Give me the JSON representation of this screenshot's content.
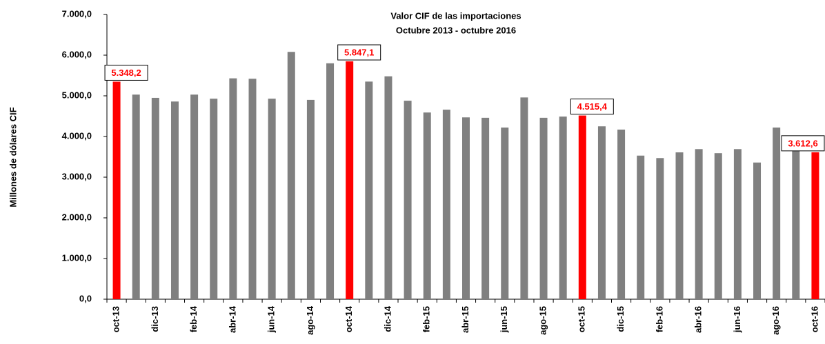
{
  "chart_data": {
    "type": "bar",
    "title": [
      "Valor CIF de las importaciones",
      "Octubre 2013 - octubre 2016"
    ],
    "y_label": "Millones de dólares CIF",
    "categories": [
      "oct-13",
      null,
      "dic-13",
      null,
      "feb-14",
      null,
      "abr-14",
      null,
      "jun-14",
      null,
      "ago-14",
      null,
      "oct-14",
      null,
      "dic-14",
      null,
      "feb-15",
      null,
      "abr-15",
      null,
      "jun-15",
      null,
      "ago-15",
      null,
      "oct-15",
      null,
      "dic-15",
      null,
      "feb-16",
      null,
      "abr-16",
      null,
      "jun-16",
      null,
      "ago-16",
      null,
      "oct-16"
    ],
    "values": [
      5348.2,
      5030,
      4950,
      4860,
      5030,
      4930,
      5430,
      5420,
      4930,
      6080,
      4900,
      5800,
      5847.1,
      5350,
      5480,
      4880,
      4590,
      4660,
      4470,
      4460,
      4220,
      4960,
      4460,
      4490,
      4515.4,
      4250,
      4170,
      3530,
      3470,
      3610,
      3690,
      3590,
      3690,
      3360,
      4220,
      3930,
      3612.6
    ],
    "value_labels": [
      "5.348,2",
      null,
      null,
      null,
      null,
      null,
      null,
      null,
      null,
      null,
      null,
      null,
      "5.847,1",
      null,
      null,
      null,
      null,
      null,
      null,
      null,
      null,
      null,
      null,
      null,
      "4.515,4",
      null,
      null,
      null,
      null,
      null,
      null,
      null,
      null,
      null,
      null,
      null,
      "3.612,6"
    ],
    "colors": [
      "#ff0000",
      "#808080",
      "#808080",
      "#808080",
      "#808080",
      "#808080",
      "#808080",
      "#808080",
      "#808080",
      "#808080",
      "#808080",
      "#808080",
      "#ff0000",
      "#808080",
      "#808080",
      "#808080",
      "#808080",
      "#808080",
      "#808080",
      "#808080",
      "#808080",
      "#808080",
      "#808080",
      "#808080",
      "#ff0000",
      "#808080",
      "#808080",
      "#808080",
      "#808080",
      "#808080",
      "#808080",
      "#808080",
      "#808080",
      "#808080",
      "#808080",
      "#808080",
      "#ff0000"
    ],
    "value_label_color": "#ff0000",
    "ylim": [
      0,
      7000
    ],
    "yticks": [
      {
        "value": 0,
        "label": "0,0"
      },
      {
        "value": 1000,
        "label": "1.000,0"
      },
      {
        "value": 2000,
        "label": "2.000,0"
      },
      {
        "value": 3000,
        "label": "3.000,0"
      },
      {
        "value": 4000,
        "label": "4.000,0"
      },
      {
        "value": 5000,
        "label": "5.000,0"
      },
      {
        "value": 6000,
        "label": "6.000,0"
      },
      {
        "value": 7000,
        "label": "7.000,0"
      }
    ],
    "grid": false
  }
}
